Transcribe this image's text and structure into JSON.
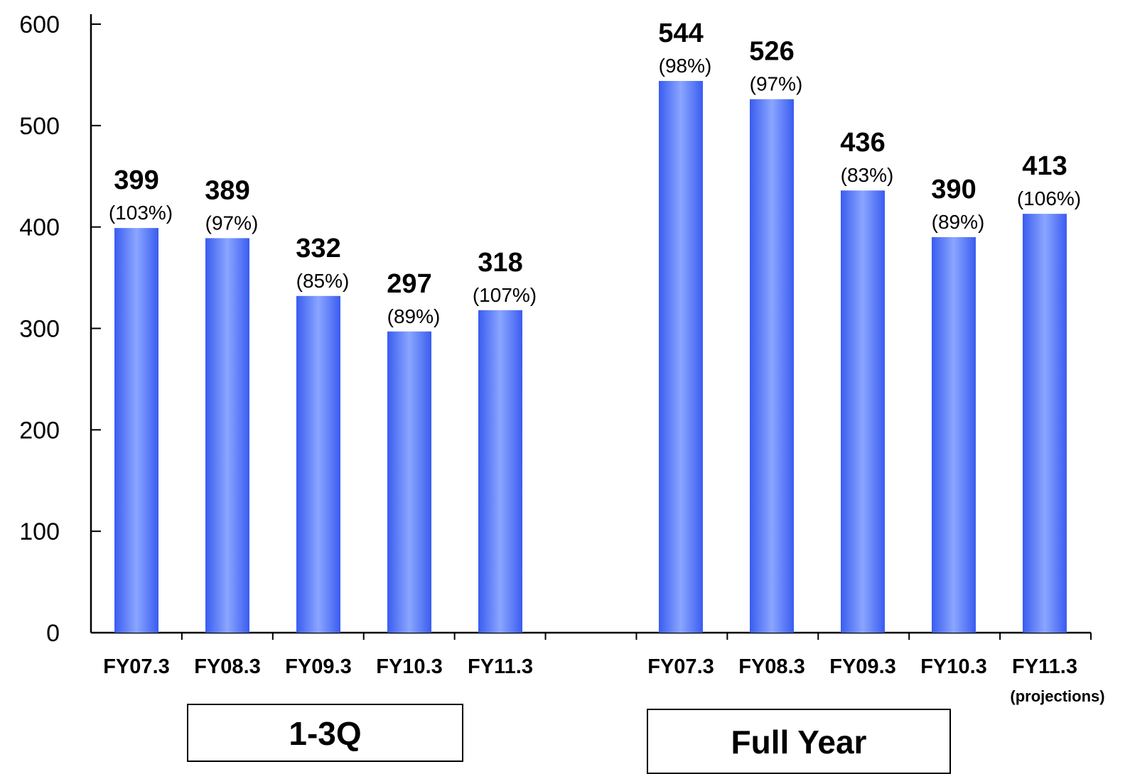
{
  "chart_data": {
    "type": "bar",
    "ylim": [
      0,
      600
    ],
    "yticks": [
      "0",
      "100",
      "200",
      "300",
      "400",
      "500",
      "600"
    ],
    "grid": false,
    "bar_color": "#5577ff",
    "groups": [
      {
        "label": "1-3Q",
        "categories": [
          "FY07.3",
          "FY08.3",
          "FY09.3",
          "FY10.3",
          "FY11.3"
        ],
        "values": [
          399,
          389,
          332,
          297,
          318
        ],
        "value_labels": [
          "399",
          "389",
          "332",
          "297",
          "318"
        ],
        "pct_labels": [
          "(103%)",
          "(97%)",
          "(85%)",
          "(89%)",
          "(107%)"
        ],
        "notes": [
          "",
          "",
          "",
          "",
          ""
        ]
      },
      {
        "label": "Full Year",
        "categories": [
          "FY07.3",
          "FY08.3",
          "FY09.3",
          "FY10.3",
          "FY11.3"
        ],
        "values": [
          544,
          526,
          436,
          390,
          413
        ],
        "value_labels": [
          "544",
          "526",
          "436",
          "390",
          "413"
        ],
        "pct_labels": [
          "(98%)",
          "(97%)",
          "(83%)",
          "(89%)",
          "(106%)"
        ],
        "notes": [
          "",
          "",
          "",
          "",
          "(projections)"
        ]
      }
    ]
  }
}
